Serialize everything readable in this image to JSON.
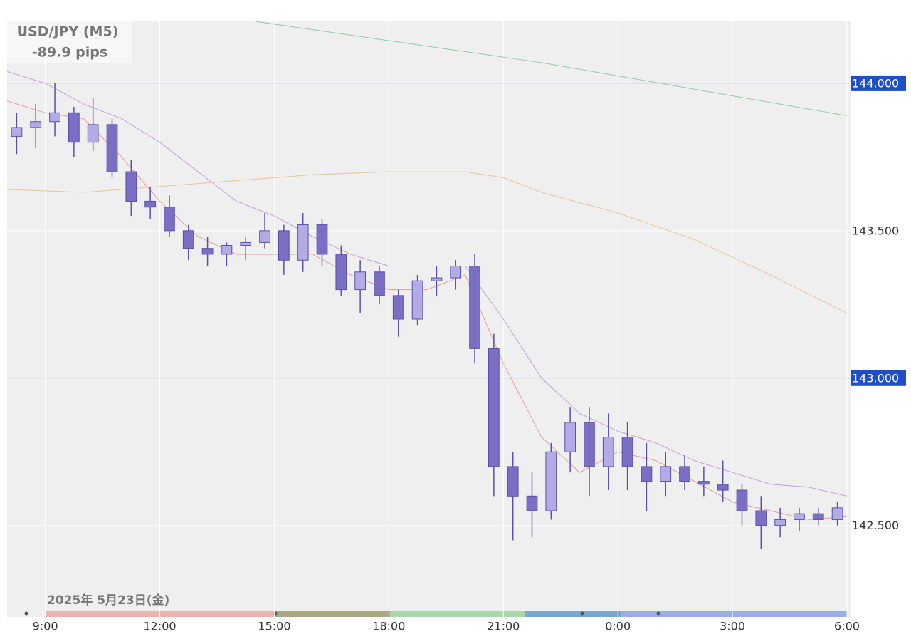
{
  "chart_data": {
    "type": "candlestick",
    "title": "USD/JPY (M5)",
    "subtitle": "-89.9 pips",
    "date_label": "2025年 5月23日(金)",
    "xlim": [
      8.0,
      30.0
    ],
    "ylim": [
      142.19,
      144.21
    ],
    "xticks": [
      {
        "value": 9,
        "label": "9:00"
      },
      {
        "value": 12,
        "label": "12:00"
      },
      {
        "value": 15,
        "label": "15:00"
      },
      {
        "value": 18,
        "label": "18:00"
      },
      {
        "value": 21,
        "label": "21:00"
      },
      {
        "value": 24,
        "label": "0:00"
      },
      {
        "value": 27,
        "label": "3:00"
      },
      {
        "value": 30,
        "label": "6:00"
      }
    ],
    "yticks": [
      {
        "value": 142.5,
        "label": "142.500"
      },
      {
        "value": 143,
        "label": "143.000"
      },
      {
        "value": 143.5,
        "label": "143.500"
      },
      {
        "value": 144,
        "label": "144.000"
      }
    ],
    "price_lines": [
      143,
      144
    ],
    "grid": true,
    "color": "#7a6fc4",
    "x": [
      8.25,
      8.75,
      9.25,
      9.75,
      10.25,
      10.75,
      11.25,
      11.75,
      12.25,
      12.75,
      13.25,
      13.75,
      14.25,
      14.75,
      15.25,
      15.75,
      16.25,
      16.75,
      17.25,
      17.75,
      18.25,
      18.75,
      19.25,
      19.75,
      20.25,
      20.75,
      21.25,
      21.75,
      22.25,
      22.75,
      23.25,
      23.75,
      24.25,
      24.75,
      25.25,
      25.75,
      26.25,
      26.75,
      27.25,
      27.75,
      28.25,
      28.75,
      29.25,
      29.75
    ],
    "open": [
      143.82,
      143.85,
      143.87,
      143.9,
      143.8,
      143.86,
      143.7,
      143.6,
      143.58,
      143.5,
      143.44,
      143.42,
      143.45,
      143.46,
      143.5,
      143.4,
      143.52,
      143.42,
      143.3,
      143.36,
      143.28,
      143.2,
      143.33,
      143.34,
      143.38,
      143.1,
      142.7,
      142.6,
      142.55,
      142.75,
      142.85,
      142.7,
      142.8,
      142.7,
      142.65,
      142.7,
      142.65,
      142.64,
      142.62,
      142.55,
      142.5,
      142.52,
      142.54,
      142.52
    ],
    "high": [
      143.9,
      143.93,
      144.0,
      143.92,
      143.95,
      143.88,
      143.74,
      143.65,
      143.62,
      143.52,
      143.48,
      143.46,
      143.48,
      143.56,
      143.52,
      143.56,
      143.54,
      143.45,
      143.4,
      143.38,
      143.3,
      143.35,
      143.38,
      143.4,
      143.42,
      143.15,
      142.75,
      142.68,
      142.78,
      142.9,
      142.9,
      142.88,
      142.85,
      142.78,
      142.75,
      142.74,
      142.7,
      142.72,
      142.64,
      142.6,
      142.56,
      142.56,
      142.56,
      142.58
    ],
    "low": [
      143.76,
      143.78,
      143.82,
      143.75,
      143.77,
      143.68,
      143.55,
      143.54,
      143.48,
      143.4,
      143.38,
      143.38,
      143.4,
      143.44,
      143.35,
      143.36,
      143.38,
      143.28,
      143.22,
      143.25,
      143.14,
      143.18,
      143.28,
      143.3,
      143.05,
      142.6,
      142.45,
      142.46,
      142.52,
      142.68,
      142.6,
      142.62,
      142.62,
      142.55,
      142.6,
      142.62,
      142.6,
      142.58,
      142.5,
      142.42,
      142.46,
      142.48,
      142.5,
      142.5
    ],
    "close": [
      143.85,
      143.87,
      143.9,
      143.8,
      143.86,
      143.7,
      143.6,
      143.58,
      143.5,
      143.44,
      143.42,
      143.45,
      143.46,
      143.5,
      143.4,
      143.52,
      143.42,
      143.3,
      143.36,
      143.28,
      143.2,
      143.33,
      143.34,
      143.38,
      143.1,
      142.7,
      142.6,
      142.55,
      142.75,
      142.85,
      142.7,
      142.8,
      142.7,
      142.65,
      142.7,
      142.65,
      142.64,
      142.62,
      142.55,
      142.5,
      142.52,
      142.54,
      142.52,
      142.56
    ],
    "lines": [
      {
        "color": "#e89a9a",
        "x": [
          8,
          9,
          10,
          11,
          12,
          13,
          14,
          15,
          16,
          17,
          18,
          19,
          20,
          21,
          22,
          23,
          24,
          25,
          26,
          27,
          28,
          29,
          30
        ],
        "values": [
          143.94,
          143.9,
          143.88,
          143.75,
          143.6,
          143.48,
          143.42,
          143.42,
          143.42,
          143.35,
          143.3,
          143.3,
          143.35,
          143.05,
          142.8,
          142.68,
          142.75,
          142.72,
          142.65,
          142.58,
          142.55,
          142.52,
          142.53
        ]
      },
      {
        "color": "#c79ae0",
        "x": [
          8,
          9,
          10,
          11,
          12,
          13,
          14,
          15,
          16,
          17,
          18,
          19,
          20,
          21,
          22,
          23,
          24,
          25,
          26,
          27,
          28,
          29,
          30
        ],
        "values": [
          144.04,
          144.0,
          143.93,
          143.88,
          143.8,
          143.7,
          143.6,
          143.55,
          143.48,
          143.42,
          143.38,
          143.38,
          143.38,
          143.2,
          143.0,
          142.88,
          142.82,
          142.78,
          142.72,
          142.68,
          142.64,
          142.63,
          142.6
        ]
      },
      {
        "color": "#e8c49a",
        "x": [
          8,
          10,
          12,
          14,
          16,
          18,
          20,
          21,
          22,
          24,
          26,
          28,
          30
        ],
        "values": [
          143.64,
          143.63,
          143.65,
          143.67,
          143.69,
          143.7,
          143.7,
          143.68,
          143.63,
          143.56,
          143.47,
          143.35,
          143.22
        ]
      },
      {
        "color": "#8fc9a8",
        "x": [
          14.5,
          22,
          30
        ],
        "values": [
          144.21,
          144.07,
          143.89
        ]
      }
    ]
  }
}
